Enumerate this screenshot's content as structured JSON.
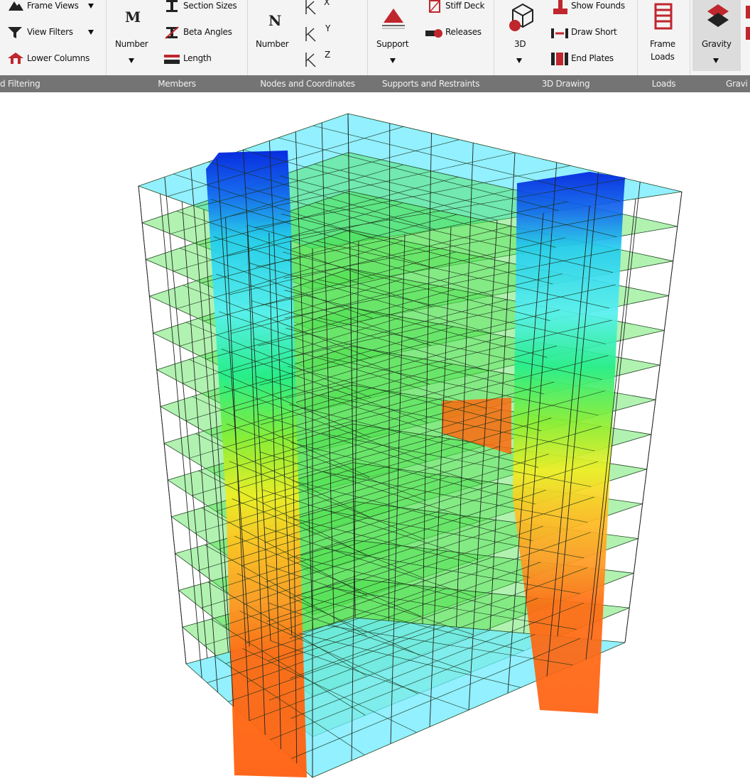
{
  "ribbon": {
    "groups": [
      {
        "label": "d Filtering",
        "buttons": [
          "Frame Views",
          "View Filters",
          "Lower Columns"
        ]
      },
      {
        "label": "Members",
        "icon": "M",
        "large": "Number",
        "buttons": [
          "Section Sizes",
          "Beta Angles",
          "Length"
        ]
      },
      {
        "label": "Nodes and Coordinates",
        "icon": "N",
        "large": "Number",
        "axes": [
          "X",
          "Y",
          "Z"
        ]
      },
      {
        "label": "Supports and Restraints",
        "large": "Support",
        "buttons": [
          "Stiff Deck",
          "Releases"
        ]
      },
      {
        "label": "3D Drawing",
        "large": "3D",
        "buttons": [
          "Show Founds",
          "Draw Short",
          "End Plates"
        ]
      },
      {
        "label": "Loads",
        "large": [
          "Frame",
          "Loads"
        ]
      },
      {
        "label": "Gravi",
        "large": "Gravity"
      }
    ]
  }
}
